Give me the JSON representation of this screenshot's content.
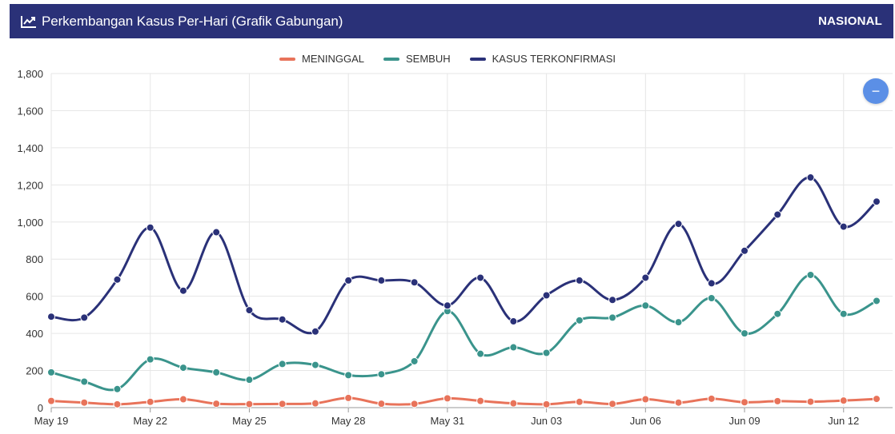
{
  "header": {
    "title": "Perkembangan Kasus Per-Hari (Grafik Gabungan)",
    "badge": "NASIONAL",
    "bg_color": "#2a3178",
    "icon": "line-chart-icon"
  },
  "controls": {
    "collapse_label": "−",
    "collapse_icon": "minus-icon"
  },
  "chart_data": {
    "type": "line",
    "x": [
      "May 19",
      "May 20",
      "May 21",
      "May 22",
      "May 23",
      "May 24",
      "May 25",
      "May 26",
      "May 27",
      "May 28",
      "May 29",
      "May 30",
      "May 31",
      "Jun 01",
      "Jun 02",
      "Jun 03",
      "Jun 04",
      "Jun 05",
      "Jun 06",
      "Jun 07",
      "Jun 08",
      "Jun 09",
      "Jun 10",
      "Jun 11",
      "Jun 12",
      "Jun 13"
    ],
    "x_tick_labels": [
      "May 19",
      "May 22",
      "May 25",
      "May 28",
      "May 31",
      "Jun 03",
      "Jun 06",
      "Jun 09",
      "Jun 12"
    ],
    "ylim": [
      0,
      1800
    ],
    "y_ticks": [
      "0",
      "200",
      "400",
      "600",
      "800",
      "1,000",
      "1,200",
      "1,400",
      "1,600",
      "1,800"
    ],
    "grid": true,
    "legend_position": "top-center",
    "series": [
      {
        "name": "MENINGGAL",
        "color": "#e8735a",
        "values": [
          36,
          27,
          18,
          31,
          45,
          21,
          19,
          20,
          23,
          52,
          21,
          20,
          50,
          36,
          23,
          18,
          31,
          20,
          45,
          27,
          48,
          29,
          35,
          32,
          38,
          47
        ]
      },
      {
        "name": "SEMBUH",
        "color": "#3a948c",
        "values": [
          190,
          140,
          100,
          260,
          215,
          190,
          150,
          235,
          230,
          175,
          180,
          250,
          520,
          290,
          325,
          295,
          470,
          485,
          550,
          460,
          590,
          400,
          505,
          715,
          505,
          575
        ]
      },
      {
        "name": "KASUS TERKONFIRMASI",
        "color": "#2a3178",
        "values": [
          490,
          485,
          690,
          970,
          630,
          945,
          525,
          475,
          410,
          685,
          685,
          675,
          550,
          700,
          465,
          605,
          685,
          580,
          700,
          990,
          670,
          845,
          1040,
          1240,
          975,
          1110
        ]
      }
    ]
  }
}
